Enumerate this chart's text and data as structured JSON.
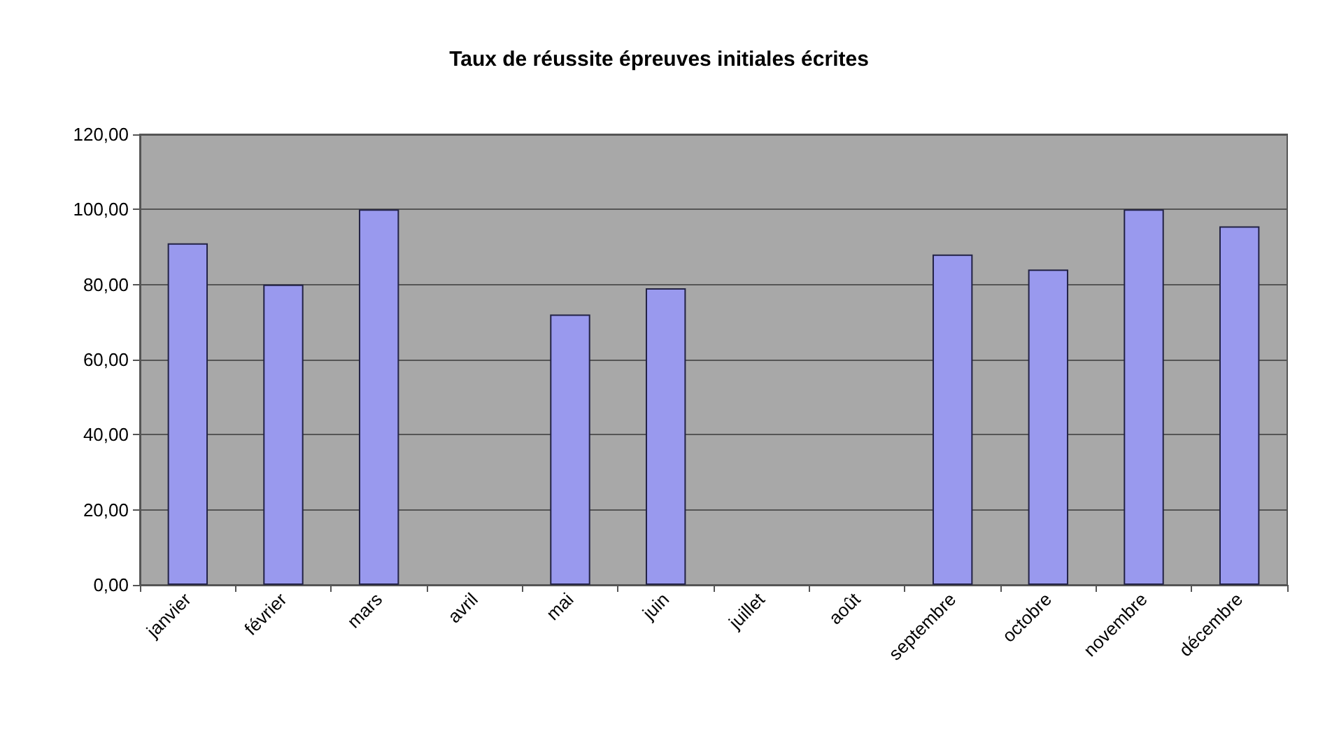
{
  "chart_data": {
    "type": "bar",
    "title": "Taux de réussite épreuves initiales écrites",
    "categories": [
      "janvier",
      "février",
      "mars",
      "avril",
      "mai",
      "juin",
      "juillet",
      "août",
      "septembre",
      "octobre",
      "novembre",
      "décembre"
    ],
    "values": [
      91,
      80,
      100,
      null,
      72,
      79,
      null,
      null,
      88,
      84,
      100,
      95.5
    ],
    "color": "#9999ee",
    "ylim": [
      0,
      120
    ],
    "yticks": [
      {
        "value": 0,
        "label": "0,00"
      },
      {
        "value": 20,
        "label": "20,00"
      },
      {
        "value": 40,
        "label": "40,00"
      },
      {
        "value": 60,
        "label": "60,00"
      },
      {
        "value": 80,
        "label": "80,00"
      },
      {
        "value": 100,
        "label": "100,00"
      },
      {
        "value": 120,
        "label": "120,00"
      }
    ],
    "grid": "y"
  }
}
